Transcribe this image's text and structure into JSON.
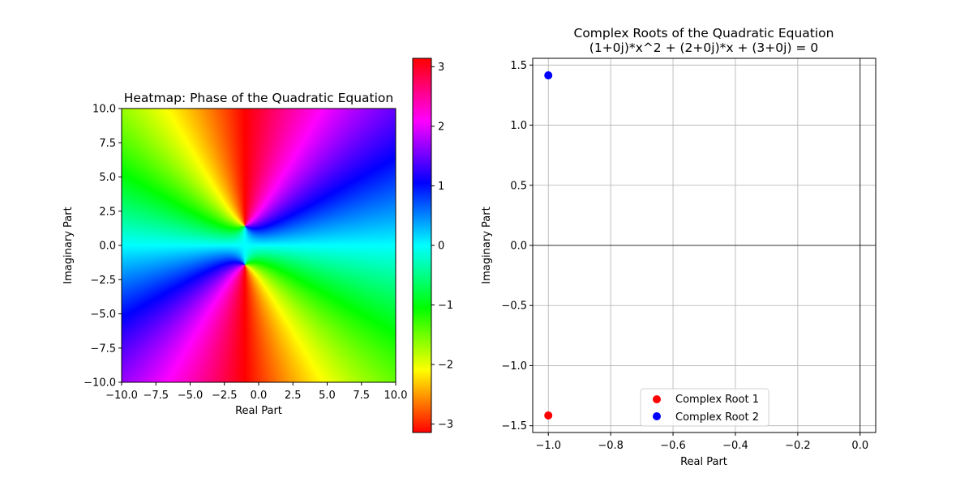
{
  "chart_data": [
    {
      "type": "heatmap",
      "title": "Heatmap: Phase of the Quadratic Equation",
      "xlabel": "Real Part",
      "ylabel": "Imaginary Part",
      "xlim": [
        -10,
        10
      ],
      "ylim": [
        -10,
        10
      ],
      "x_ticks": [
        -10,
        -7.5,
        -5,
        -2.5,
        0,
        2.5,
        5,
        7.5,
        10
      ],
      "y_ticks": [
        -10,
        -7.5,
        -5,
        -2.5,
        0,
        2.5,
        5,
        7.5,
        10
      ],
      "x_tick_labels": [
        "−10.0",
        "−7.5",
        "−5.0",
        "−2.5",
        "0.0",
        "2.5",
        "5.0",
        "7.5",
        "10.0"
      ],
      "y_tick_labels": [
        "−10.0",
        "−7.5",
        "−5.0",
        "−2.5",
        "0.0",
        "2.5",
        "5.0",
        "7.5",
        "10.0"
      ],
      "function": "(1+0j)*z^2 + (2+0j)*z + (3+0j)",
      "value": "phase (argument) in radians",
      "colormap": "hsv",
      "colorbar": {
        "range": [
          -3.14159,
          3.14159
        ],
        "ticks": [
          -3,
          -2,
          -1,
          0,
          1,
          2,
          3
        ],
        "tick_labels": [
          "−3",
          "−2",
          "−1",
          "0",
          "1",
          "2",
          "3"
        ]
      }
    },
    {
      "type": "scatter",
      "title_line1": "Complex Roots of the Quadratic Equation",
      "title_line2": "(1+0j)*x^2 + (2+0j)*x + (3+0j) = 0",
      "xlabel": "Real Part",
      "ylabel": "Imaginary Part",
      "xlim": [
        -1.05,
        0.05
      ],
      "ylim": [
        -1.556,
        1.556
      ],
      "x_ticks": [
        -1.0,
        -0.8,
        -0.6,
        -0.4,
        -0.2,
        0.0
      ],
      "x_tick_labels": [
        "−1.0",
        "−0.8",
        "−0.6",
        "−0.4",
        "−0.2",
        "0.0"
      ],
      "y_ticks": [
        -1.5,
        -1.0,
        -0.5,
        0.0,
        0.5,
        1.0,
        1.5
      ],
      "y_tick_labels": [
        "−1.5",
        "−1.0",
        "−0.5",
        "0.0",
        "0.5",
        "1.0",
        "1.5"
      ],
      "grid": true,
      "legend_position": "lower-center",
      "series": [
        {
          "name": "Complex Root 1",
          "color": "#ff0000",
          "points": [
            {
              "x": -1.0,
              "y": -1.41421
            }
          ]
        },
        {
          "name": "Complex Root 2",
          "color": "#0000ff",
          "points": [
            {
              "x": -1.0,
              "y": 1.41421
            }
          ]
        }
      ]
    }
  ]
}
